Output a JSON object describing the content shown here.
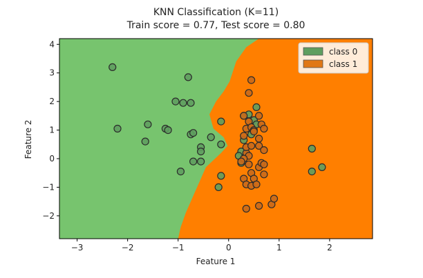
{
  "chart_data": {
    "type": "scatter",
    "title": "KNN Classification (K=11)",
    "subtitle": "Train score = 0.77, Test score = 0.80",
    "xlabel": "Feature 1",
    "ylabel": "Feature 2",
    "xlim": [
      -3.35,
      2.85
    ],
    "ylim": [
      -2.8,
      4.2
    ],
    "xticks": [
      -3,
      -2,
      -1,
      0,
      1,
      2
    ],
    "yticks": [
      -2,
      -1,
      0,
      1,
      2,
      3,
      4
    ],
    "grid": false,
    "legend_position": "top-right",
    "legend": [
      {
        "label": "class 0",
        "color": "#5f9e5f"
      },
      {
        "label": "class 1",
        "color": "#e07816"
      }
    ],
    "regions": [
      {
        "class": "class 0",
        "color": "#77c46e"
      },
      {
        "class": "class 1",
        "color": "#ff7f00"
      }
    ],
    "decision_boundary": [
      [
        0.6,
        4.2
      ],
      [
        0.35,
        3.9
      ],
      [
        0.15,
        3.4
      ],
      [
        0.02,
        2.7
      ],
      [
        -0.1,
        2.35
      ],
      [
        -0.25,
        2.0
      ],
      [
        -0.38,
        1.55
      ],
      [
        -0.3,
        1.05
      ],
      [
        -0.1,
        0.75
      ],
      [
        -0.02,
        0.45
      ],
      [
        -0.15,
        0.2
      ],
      [
        -0.3,
        -0.05
      ],
      [
        -0.45,
        -0.3
      ],
      [
        -0.55,
        -0.7
      ],
      [
        -0.7,
        -1.3
      ],
      [
        -0.85,
        -1.9
      ],
      [
        -0.95,
        -2.4
      ],
      [
        -1.0,
        -2.8
      ]
    ],
    "series": [
      {
        "name": "class 0",
        "color": "#5f9e5f",
        "points": [
          [
            -2.3,
            3.2
          ],
          [
            -2.2,
            1.05
          ],
          [
            -1.6,
            1.2
          ],
          [
            -1.65,
            0.6
          ],
          [
            -1.25,
            1.05
          ],
          [
            -1.2,
            1.0
          ],
          [
            -1.05,
            2.0
          ],
          [
            -0.9,
            1.95
          ],
          [
            -0.75,
            1.95
          ],
          [
            -0.8,
            2.85
          ],
          [
            -0.75,
            0.85
          ],
          [
            -0.7,
            0.9
          ],
          [
            -0.7,
            -0.1
          ],
          [
            -0.55,
            0.4
          ],
          [
            -0.55,
            0.25
          ],
          [
            -0.55,
            -0.1
          ],
          [
            -0.35,
            0.75
          ],
          [
            -0.15,
            1.3
          ],
          [
            -0.15,
            0.5
          ],
          [
            -0.95,
            -0.45
          ],
          [
            -0.15,
            -0.6
          ],
          [
            -0.2,
            -1.0
          ],
          [
            0.25,
            0.25
          ],
          [
            0.3,
            1.5
          ],
          [
            0.4,
            1.55
          ],
          [
            0.5,
            1.35
          ],
          [
            0.45,
            0.85
          ],
          [
            0.55,
            1.2
          ],
          [
            0.2,
            0.1
          ],
          [
            0.25,
            -0.15
          ],
          [
            0.55,
            1.8
          ],
          [
            0.3,
            0.65
          ],
          [
            1.65,
            0.35
          ],
          [
            1.65,
            -0.45
          ],
          [
            1.85,
            -0.3
          ]
        ]
      },
      {
        "name": "class 1",
        "color": "#c96a1b",
        "points": [
          [
            0.3,
            0.8
          ],
          [
            0.35,
            1.05
          ],
          [
            0.4,
            1.3
          ],
          [
            0.45,
            1.1
          ],
          [
            0.5,
            1.0
          ],
          [
            0.5,
            0.95
          ],
          [
            0.6,
            1.5
          ],
          [
            0.65,
            1.2
          ],
          [
            0.7,
            1.05
          ],
          [
            0.6,
            0.7
          ],
          [
            0.4,
            2.3
          ],
          [
            0.45,
            2.75
          ],
          [
            0.3,
            1.5
          ],
          [
            0.35,
            0.2
          ],
          [
            0.4,
            0.1
          ],
          [
            0.4,
            -0.2
          ],
          [
            0.45,
            -0.5
          ],
          [
            0.3,
            -0.7
          ],
          [
            0.35,
            -0.9
          ],
          [
            0.45,
            -0.95
          ],
          [
            0.5,
            -0.7
          ],
          [
            0.55,
            -0.9
          ],
          [
            0.6,
            -0.3
          ],
          [
            0.65,
            -0.15
          ],
          [
            0.7,
            -0.2
          ],
          [
            0.7,
            -0.55
          ],
          [
            0.6,
            0.45
          ],
          [
            0.7,
            0.3
          ],
          [
            0.35,
            0.4
          ],
          [
            0.6,
            -1.65
          ],
          [
            0.85,
            -1.6
          ],
          [
            0.9,
            -1.4
          ],
          [
            0.35,
            -1.75
          ],
          [
            0.3,
            0.0
          ],
          [
            0.25,
            -0.1
          ],
          [
            0.45,
            0.45
          ]
        ]
      }
    ]
  }
}
